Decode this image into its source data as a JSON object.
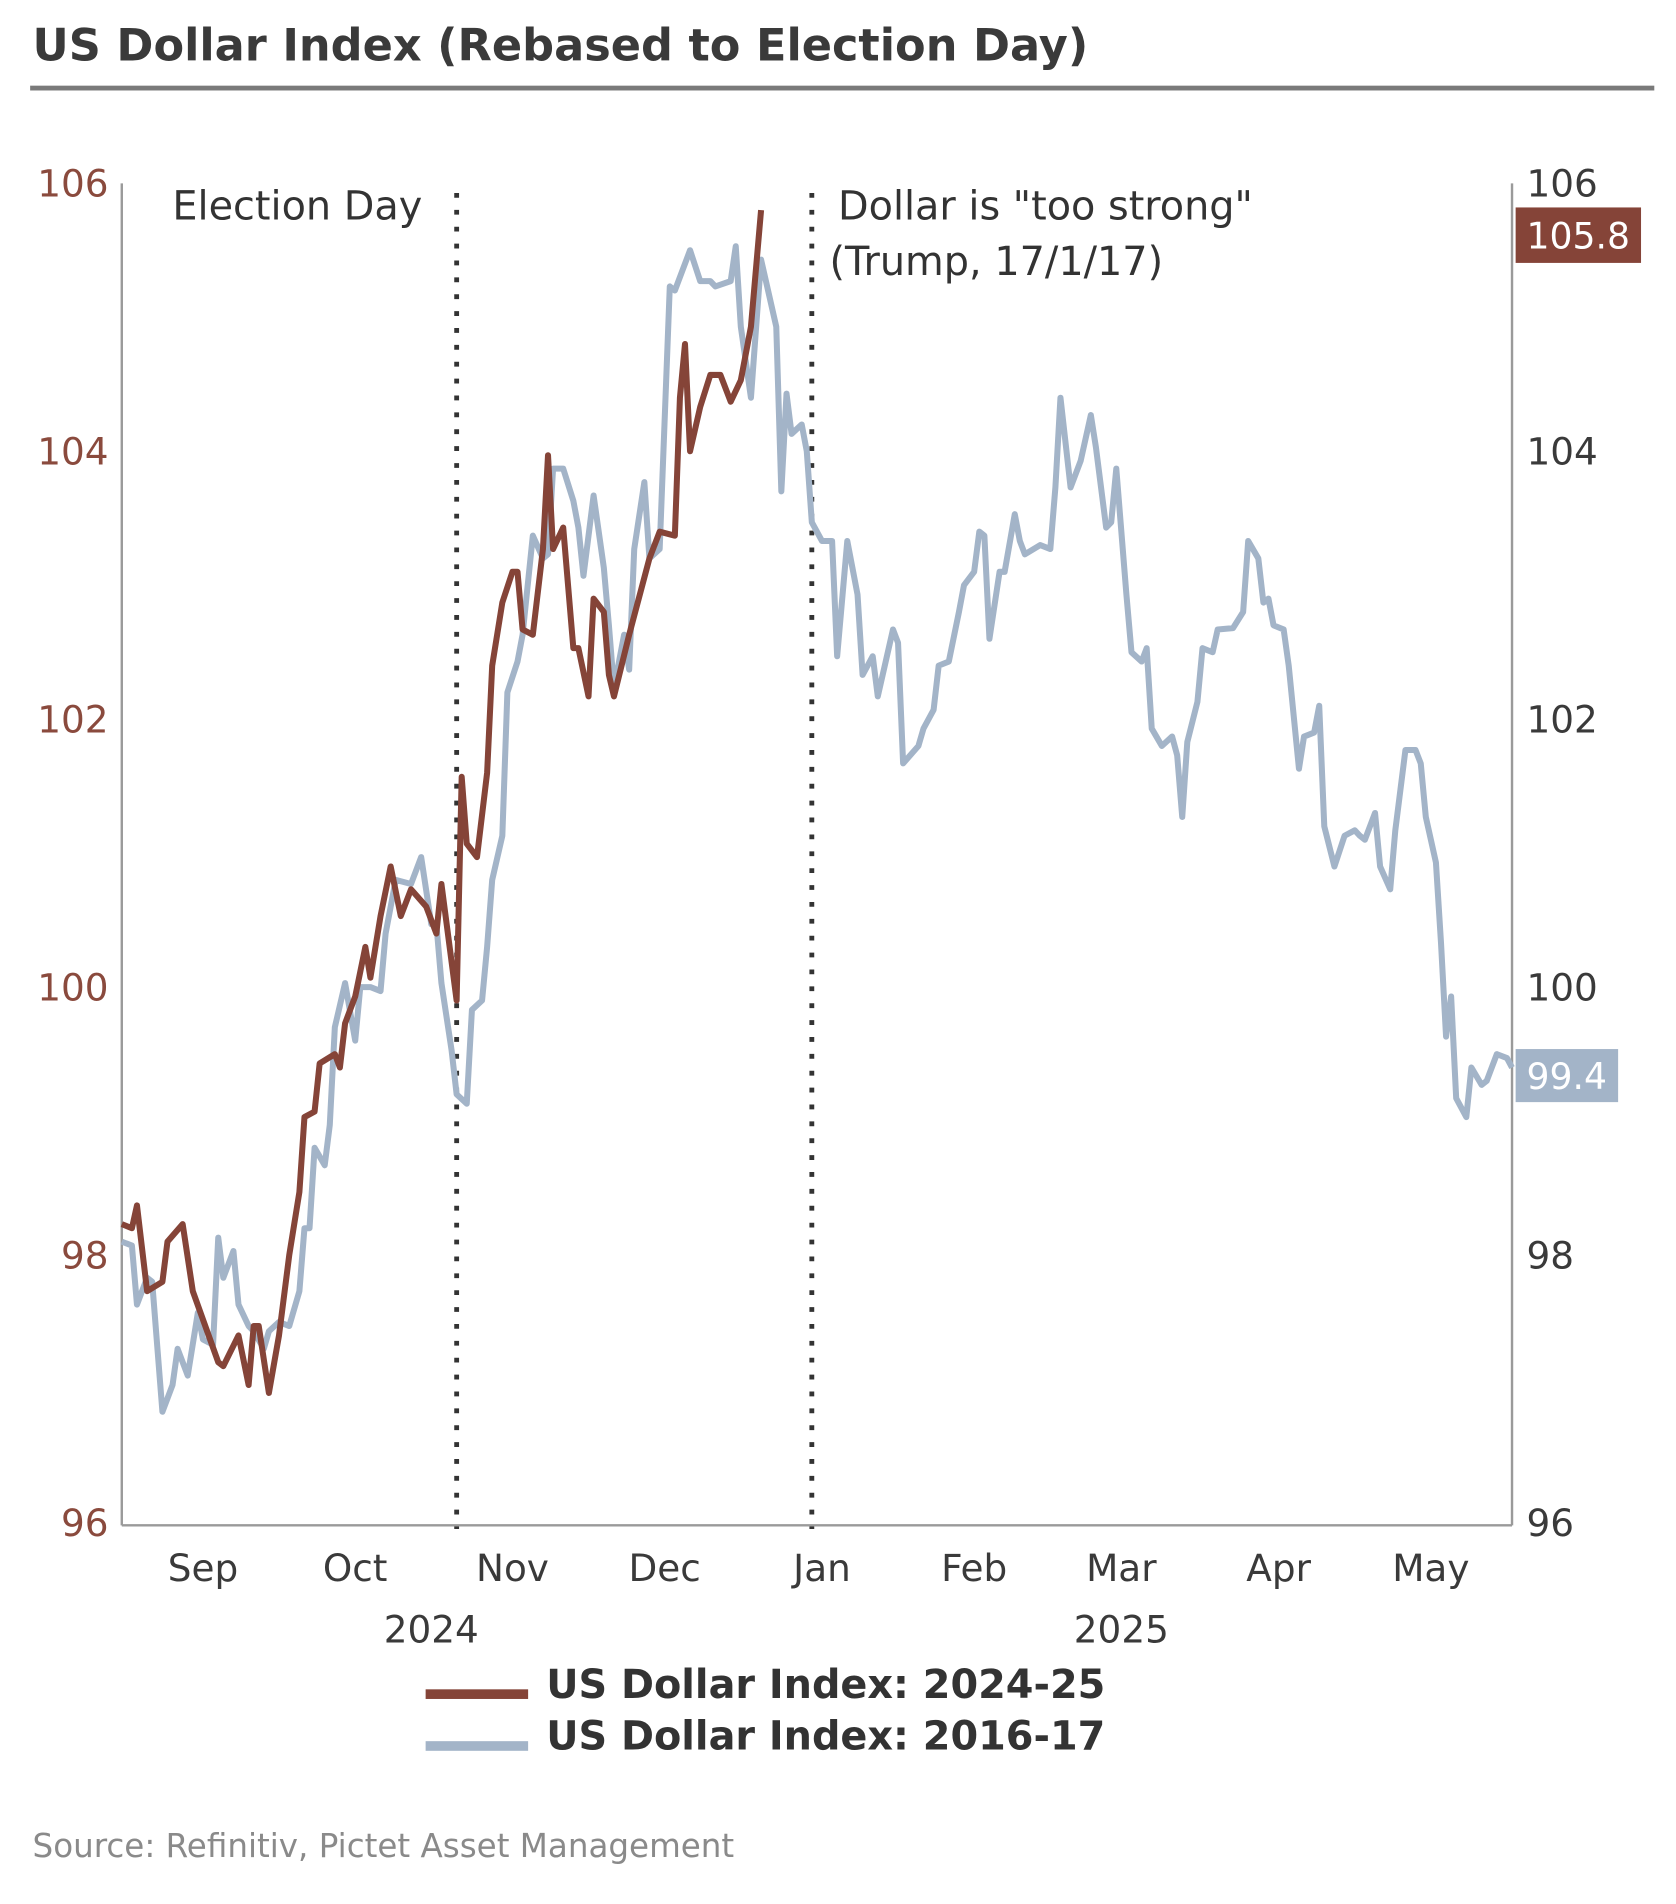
{
  "title": "US Dollar Index (Rebased to Election Day)",
  "source": "Source: Refinitiv, Pictet Asset Management",
  "colors": {
    "series_2024": "#854438",
    "series_2016": "#a3b4c8",
    "left_axis": "#8a4a3d",
    "rule": "#7a7a7a"
  },
  "chart_data": {
    "type": "line",
    "title": "US Dollar Index (Rebased to Election Day)",
    "xlabel": "",
    "ylabel": "",
    "xlim": [
      "2024-08-30",
      "2025-05-31"
    ],
    "ylim": [
      96,
      106
    ],
    "y_ticks": [
      "106",
      "104",
      "102",
      "100",
      "98",
      "96"
    ],
    "y_ticks_right": [
      "106",
      "104",
      "102",
      "100",
      "98",
      "96"
    ],
    "x_ticks": [
      {
        "label": "Sep",
        "date": "2024-09-15"
      },
      {
        "label": "Oct",
        "date": "2024-10-15"
      },
      {
        "label": "Nov",
        "date": "2024-11-15"
      },
      {
        "label": "Dec",
        "date": "2024-12-15"
      },
      {
        "label": "Jan",
        "date": "2025-01-15"
      },
      {
        "label": "Feb",
        "date": "2025-02-14"
      },
      {
        "label": "Mar",
        "date": "2025-03-15"
      },
      {
        "label": "Apr",
        "date": "2025-04-15"
      },
      {
        "label": "May",
        "date": "2025-05-15"
      }
    ],
    "x_years": [
      {
        "label": "2024",
        "date": "2024-10-30"
      },
      {
        "label": "2025",
        "date": "2025-03-15"
      }
    ],
    "grid": false,
    "legend_position": "bottom",
    "annotations": [
      {
        "date": "2024-11-04",
        "lines": [
          "Election Day"
        ],
        "style": "dotted-vertical"
      },
      {
        "date": "2025-01-13",
        "lines": [
          "Dollar is \"too strong\"",
          "(Trump, 17/1/17)"
        ],
        "style": "dotted-vertical"
      }
    ],
    "end_labels": [
      {
        "series": 0,
        "text": "105.8"
      },
      {
        "series": 1,
        "text": "99.4"
      }
    ],
    "series": [
      {
        "name": "US Dollar Index: 2024-25",
        "color": "#854438",
        "points": [
          [
            "2024-08-30",
            98.23
          ],
          [
            "2024-09-01",
            98.2
          ],
          [
            "2024-09-02",
            98.37
          ],
          [
            "2024-09-04",
            97.73
          ],
          [
            "2024-09-07",
            97.8
          ],
          [
            "2024-09-08",
            98.1
          ],
          [
            "2024-09-11",
            98.23
          ],
          [
            "2024-09-13",
            97.73
          ],
          [
            "2024-09-18",
            97.2
          ],
          [
            "2024-09-19",
            97.17
          ],
          [
            "2024-09-22",
            97.4
          ],
          [
            "2024-09-24",
            97.03
          ],
          [
            "2024-09-25",
            97.47
          ],
          [
            "2024-09-26",
            97.47
          ],
          [
            "2024-09-28",
            96.97
          ],
          [
            "2024-09-30",
            97.4
          ],
          [
            "2024-10-02",
            98.0
          ],
          [
            "2024-10-04",
            98.47
          ],
          [
            "2024-10-05",
            99.03
          ],
          [
            "2024-10-07",
            99.07
          ],
          [
            "2024-10-08",
            99.43
          ],
          [
            "2024-10-11",
            99.5
          ],
          [
            "2024-10-12",
            99.4
          ],
          [
            "2024-10-13",
            99.73
          ],
          [
            "2024-10-15",
            99.93
          ],
          [
            "2024-10-17",
            100.3
          ],
          [
            "2024-10-18",
            100.07
          ],
          [
            "2024-10-20",
            100.53
          ],
          [
            "2024-10-22",
            100.9
          ],
          [
            "2024-10-24",
            100.53
          ],
          [
            "2024-10-26",
            100.73
          ],
          [
            "2024-10-29",
            100.6
          ],
          [
            "2024-10-31",
            100.4
          ],
          [
            "2024-11-01",
            100.77
          ],
          [
            "2024-11-04",
            99.9
          ],
          [
            "2024-11-05",
            101.57
          ],
          [
            "2024-11-06",
            101.07
          ],
          [
            "2024-11-08",
            100.97
          ],
          [
            "2024-11-10",
            101.6
          ],
          [
            "2024-11-11",
            102.4
          ],
          [
            "2024-11-13",
            102.87
          ],
          [
            "2024-11-15",
            103.1
          ],
          [
            "2024-11-16",
            103.1
          ],
          [
            "2024-11-17",
            102.67
          ],
          [
            "2024-11-19",
            102.63
          ],
          [
            "2024-11-21",
            103.27
          ],
          [
            "2024-11-22",
            103.97
          ],
          [
            "2024-11-23",
            103.27
          ],
          [
            "2024-11-25",
            103.43
          ],
          [
            "2024-11-27",
            102.53
          ],
          [
            "2024-11-28",
            102.53
          ],
          [
            "2024-11-30",
            102.17
          ],
          [
            "2024-12-01",
            102.9
          ],
          [
            "2024-12-03",
            102.8
          ],
          [
            "2024-12-04",
            102.33
          ],
          [
            "2024-12-05",
            102.17
          ],
          [
            "2024-12-08",
            102.63
          ],
          [
            "2024-12-12",
            103.2
          ],
          [
            "2024-12-14",
            103.4
          ],
          [
            "2024-12-17",
            103.37
          ],
          [
            "2024-12-18",
            104.4
          ],
          [
            "2024-12-19",
            104.8
          ],
          [
            "2024-12-20",
            104.0
          ],
          [
            "2024-12-22",
            104.33
          ],
          [
            "2024-12-24",
            104.57
          ],
          [
            "2024-12-26",
            104.57
          ],
          [
            "2024-12-28",
            104.37
          ],
          [
            "2024-12-30",
            104.53
          ],
          [
            "2025-01-01",
            104.93
          ],
          [
            "2025-01-03",
            105.8
          ]
        ]
      },
      {
        "name": "US Dollar Index: 2016-17",
        "color": "#a3b4c8",
        "points": [
          [
            "2024-08-30",
            98.1
          ],
          [
            "2024-09-01",
            98.07
          ],
          [
            "2024-09-02",
            97.63
          ],
          [
            "2024-09-04",
            97.83
          ],
          [
            "2024-09-05",
            97.8
          ],
          [
            "2024-09-07",
            96.83
          ],
          [
            "2024-09-09",
            97.03
          ],
          [
            "2024-09-10",
            97.3
          ],
          [
            "2024-09-12",
            97.1
          ],
          [
            "2024-09-14",
            97.57
          ],
          [
            "2024-09-15",
            97.37
          ],
          [
            "2024-09-17",
            97.33
          ],
          [
            "2024-09-18",
            98.13
          ],
          [
            "2024-09-19",
            97.83
          ],
          [
            "2024-09-21",
            98.03
          ],
          [
            "2024-09-22",
            97.63
          ],
          [
            "2024-09-24",
            97.47
          ],
          [
            "2024-09-25",
            97.43
          ],
          [
            "2024-09-27",
            97.3
          ],
          [
            "2024-09-28",
            97.43
          ],
          [
            "2024-09-30",
            97.5
          ],
          [
            "2024-10-02",
            97.47
          ],
          [
            "2024-10-04",
            97.73
          ],
          [
            "2024-10-05",
            98.2
          ],
          [
            "2024-10-06",
            98.2
          ],
          [
            "2024-10-07",
            98.8
          ],
          [
            "2024-10-09",
            98.67
          ],
          [
            "2024-10-10",
            98.97
          ],
          [
            "2024-10-11",
            99.7
          ],
          [
            "2024-10-13",
            100.03
          ],
          [
            "2024-10-15",
            99.6
          ],
          [
            "2024-10-16",
            100.0
          ],
          [
            "2024-10-18",
            100.0
          ],
          [
            "2024-10-20",
            99.97
          ],
          [
            "2024-10-21",
            100.4
          ],
          [
            "2024-10-23",
            100.8
          ],
          [
            "2024-10-26",
            100.77
          ],
          [
            "2024-10-28",
            100.97
          ],
          [
            "2024-10-30",
            100.47
          ],
          [
            "2024-10-31",
            100.47
          ],
          [
            "2024-11-01",
            100.03
          ],
          [
            "2024-11-03",
            99.53
          ],
          [
            "2024-11-04",
            99.2
          ],
          [
            "2024-11-06",
            99.13
          ],
          [
            "2024-11-07",
            99.83
          ],
          [
            "2024-11-09",
            99.9
          ],
          [
            "2024-11-10",
            100.3
          ],
          [
            "2024-11-11",
            100.8
          ],
          [
            "2024-11-13",
            101.13
          ],
          [
            "2024-11-14",
            102.2
          ],
          [
            "2024-11-16",
            102.43
          ],
          [
            "2024-11-17",
            102.63
          ],
          [
            "2024-11-19",
            103.37
          ],
          [
            "2024-11-21",
            103.2
          ],
          [
            "2024-11-22",
            103.23
          ],
          [
            "2024-11-23",
            103.87
          ],
          [
            "2024-11-25",
            103.87
          ],
          [
            "2024-11-27",
            103.63
          ],
          [
            "2024-11-28",
            103.43
          ],
          [
            "2024-11-29",
            103.07
          ],
          [
            "2024-12-01",
            103.67
          ],
          [
            "2024-12-03",
            103.13
          ],
          [
            "2024-12-04",
            102.7
          ],
          [
            "2024-12-05",
            102.23
          ],
          [
            "2024-12-07",
            102.63
          ],
          [
            "2024-12-08",
            102.37
          ],
          [
            "2024-12-09",
            103.27
          ],
          [
            "2024-12-11",
            103.77
          ],
          [
            "2024-12-12",
            103.2
          ],
          [
            "2024-12-14",
            103.27
          ],
          [
            "2024-12-16",
            105.23
          ],
          [
            "2024-12-17",
            105.2
          ],
          [
            "2024-12-20",
            105.5
          ],
          [
            "2024-12-22",
            105.27
          ],
          [
            "2024-12-24",
            105.27
          ],
          [
            "2024-12-25",
            105.23
          ],
          [
            "2024-12-28",
            105.27
          ],
          [
            "2024-12-29",
            105.53
          ],
          [
            "2024-12-30",
            104.93
          ],
          [
            "2025-01-01",
            104.4
          ],
          [
            "2025-01-03",
            105.43
          ],
          [
            "2025-01-06",
            104.93
          ],
          [
            "2025-01-07",
            103.7
          ],
          [
            "2025-01-08",
            104.43
          ],
          [
            "2025-01-09",
            104.13
          ],
          [
            "2025-01-11",
            104.2
          ],
          [
            "2025-01-12",
            104.0
          ],
          [
            "2025-01-13",
            103.47
          ],
          [
            "2025-01-15",
            103.33
          ],
          [
            "2025-01-17",
            103.33
          ],
          [
            "2025-01-18",
            102.47
          ],
          [
            "2025-01-20",
            103.33
          ],
          [
            "2025-01-22",
            102.93
          ],
          [
            "2025-01-23",
            102.33
          ],
          [
            "2025-01-25",
            102.47
          ],
          [
            "2025-01-26",
            102.17
          ],
          [
            "2025-01-29",
            102.67
          ],
          [
            "2025-01-30",
            102.57
          ],
          [
            "2025-01-31",
            101.67
          ],
          [
            "2025-02-03",
            101.8
          ],
          [
            "2025-02-04",
            101.93
          ],
          [
            "2025-02-06",
            102.07
          ],
          [
            "2025-02-07",
            102.4
          ],
          [
            "2025-02-09",
            102.43
          ],
          [
            "2025-02-11",
            102.8
          ],
          [
            "2025-02-12",
            103.0
          ],
          [
            "2025-02-14",
            103.1
          ],
          [
            "2025-02-15",
            103.4
          ],
          [
            "2025-02-16",
            103.37
          ],
          [
            "2025-02-17",
            102.6
          ],
          [
            "2025-02-19",
            103.1
          ],
          [
            "2025-02-20",
            103.1
          ],
          [
            "2025-02-22",
            103.53
          ],
          [
            "2025-02-23",
            103.33
          ],
          [
            "2025-02-24",
            103.23
          ],
          [
            "2025-02-27",
            103.3
          ],
          [
            "2025-03-01",
            103.27
          ],
          [
            "2025-03-02",
            103.73
          ],
          [
            "2025-03-03",
            104.4
          ],
          [
            "2025-03-05",
            103.73
          ],
          [
            "2025-03-07",
            103.93
          ],
          [
            "2025-03-09",
            104.27
          ],
          [
            "2025-03-10",
            104.03
          ],
          [
            "2025-03-12",
            103.43
          ],
          [
            "2025-03-13",
            103.47
          ],
          [
            "2025-03-14",
            103.87
          ],
          [
            "2025-03-16",
            102.93
          ],
          [
            "2025-03-17",
            102.5
          ],
          [
            "2025-03-19",
            102.43
          ],
          [
            "2025-03-20",
            102.53
          ],
          [
            "2025-03-21",
            101.93
          ],
          [
            "2025-03-23",
            101.8
          ],
          [
            "2025-03-25",
            101.87
          ],
          [
            "2025-03-26",
            101.73
          ],
          [
            "2025-03-27",
            101.27
          ],
          [
            "2025-03-28",
            101.83
          ],
          [
            "2025-03-30",
            102.13
          ],
          [
            "2025-03-31",
            102.53
          ],
          [
            "2025-04-02",
            102.5
          ],
          [
            "2025-04-03",
            102.67
          ],
          [
            "2025-04-06",
            102.68
          ],
          [
            "2025-04-08",
            102.8
          ],
          [
            "2025-04-09",
            103.33
          ],
          [
            "2025-04-11",
            103.2
          ],
          [
            "2025-04-12",
            102.87
          ],
          [
            "2025-04-13",
            102.9
          ],
          [
            "2025-04-14",
            102.7
          ],
          [
            "2025-04-16",
            102.67
          ],
          [
            "2025-04-17",
            102.4
          ],
          [
            "2025-04-19",
            101.63
          ],
          [
            "2025-04-20",
            101.87
          ],
          [
            "2025-04-22",
            101.9
          ],
          [
            "2025-04-23",
            102.1
          ],
          [
            "2025-04-24",
            101.2
          ],
          [
            "2025-04-26",
            100.9
          ],
          [
            "2025-04-28",
            101.13
          ],
          [
            "2025-04-30",
            101.17
          ],
          [
            "2025-05-01",
            101.13
          ],
          [
            "2025-05-02",
            101.1
          ],
          [
            "2025-05-04",
            101.3
          ],
          [
            "2025-05-05",
            100.9
          ],
          [
            "2025-05-07",
            100.73
          ],
          [
            "2025-05-08",
            101.17
          ],
          [
            "2025-05-10",
            101.77
          ],
          [
            "2025-05-12",
            101.77
          ],
          [
            "2025-05-13",
            101.67
          ],
          [
            "2025-05-14",
            101.27
          ],
          [
            "2025-05-16",
            100.93
          ],
          [
            "2025-05-17",
            100.33
          ],
          [
            "2025-05-18",
            99.63
          ],
          [
            "2025-05-19",
            99.93
          ],
          [
            "2025-05-20",
            99.17
          ],
          [
            "2025-05-22",
            99.03
          ],
          [
            "2025-05-23",
            99.4
          ],
          [
            "2025-05-25",
            99.27
          ],
          [
            "2025-05-26",
            99.3
          ],
          [
            "2025-05-28",
            99.5
          ],
          [
            "2025-05-30",
            99.47
          ],
          [
            "2025-05-31",
            99.4
          ]
        ]
      }
    ]
  }
}
